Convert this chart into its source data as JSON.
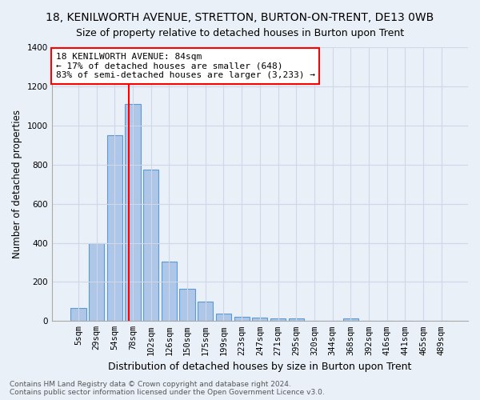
{
  "title": "18, KENILWORTH AVENUE, STRETTON, BURTON-ON-TRENT, DE13 0WB",
  "subtitle": "Size of property relative to detached houses in Burton upon Trent",
  "xlabel": "Distribution of detached houses by size in Burton upon Trent",
  "ylabel": "Number of detached properties",
  "footer1": "Contains HM Land Registry data © Crown copyright and database right 2024.",
  "footer2": "Contains public sector information licensed under the Open Government Licence v3.0.",
  "categories": [
    "5sqm",
    "29sqm",
    "54sqm",
    "78sqm",
    "102sqm",
    "126sqm",
    "150sqm",
    "175sqm",
    "199sqm",
    "223sqm",
    "247sqm",
    "271sqm",
    "295sqm",
    "320sqm",
    "344sqm",
    "368sqm",
    "392sqm",
    "416sqm",
    "441sqm",
    "465sqm",
    "489sqm"
  ],
  "values": [
    65,
    400,
    950,
    1110,
    775,
    305,
    165,
    100,
    37,
    20,
    18,
    14,
    14,
    0,
    0,
    14,
    0,
    0,
    0,
    0,
    0
  ],
  "bar_color": "#aec6e8",
  "bar_edge_color": "#5b9bd5",
  "annotation_text_line1": "18 KENILWORTH AVENUE: 84sqm",
  "annotation_text_line2": "← 17% of detached houses are smaller (648)",
  "annotation_text_line3": "83% of semi-detached houses are larger (3,233) →",
  "annotation_box_color": "white",
  "annotation_box_edge": "red",
  "red_line_color": "red",
  "grid_color": "#d0d8e8",
  "background_color": "#eaf0f8",
  "ylim": [
    0,
    1400
  ],
  "yticks": [
    0,
    200,
    400,
    600,
    800,
    1000,
    1200,
    1400
  ],
  "title_fontsize": 10,
  "xlabel_fontsize": 9,
  "ylabel_fontsize": 8.5,
  "tick_fontsize": 7.5,
  "annotation_fontsize": 8,
  "footer_fontsize": 6.5,
  "red_line_index": 3.25
}
